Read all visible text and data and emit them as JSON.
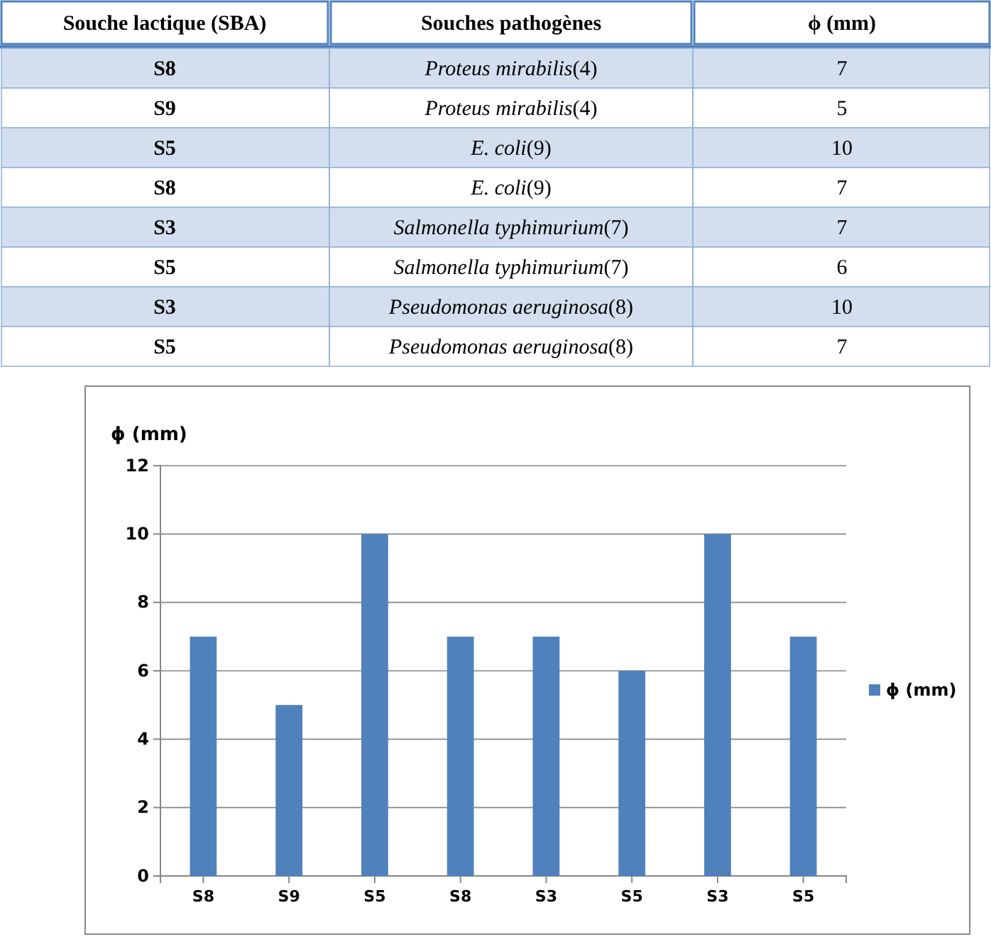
{
  "chart_data": [
    {
      "type": "other",
      "title": null,
      "annotations": [
        "Souche lactique (SBA)",
        "Souches pathogènes",
        "ϕ (mm)",
        "Proteus mirabilis(4)",
        "Proteus mirabilis(4)",
        "E. coli(9)",
        "E. coli(9)",
        "Salmonella typhimurium(7)",
        "Salmonella typhimurium(7)",
        "Pseudomonas aeruginosa(8)",
        "Pseudomonas aeruginosa(8)"
      ],
      "categories": [
        "S8",
        "S9",
        "S5",
        "S8",
        "S3",
        "S5",
        "S3",
        "S5"
      ],
      "values": [
        7,
        5,
        10,
        7,
        7,
        6,
        10,
        7
      ],
      "data_labels": true
    },
    {
      "type": "bar",
      "ylabel": "ϕ (mm)",
      "categories": [
        "S8",
        "S9",
        "S5",
        "S8",
        "S3",
        "S5",
        "S3",
        "S5"
      ],
      "series": [
        {
          "name": "ϕ (mm)",
          "color": "#4f81bd",
          "values": [
            7,
            5,
            10,
            7,
            7,
            6,
            10,
            7
          ]
        }
      ],
      "ylim": [
        0,
        12
      ],
      "yticks": [
        0,
        2,
        4,
        6,
        8,
        10,
        12
      ],
      "grid": "y",
      "legend": "right"
    }
  ]
}
